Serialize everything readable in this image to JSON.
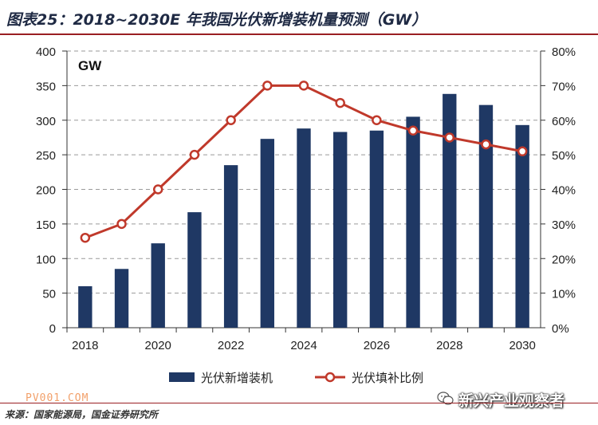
{
  "header": {
    "title": "图表25：2018~2030E 年我国光伏新增装机量预测（GW）"
  },
  "footer": {
    "source": "来源：国家能源局，国金证券研究所",
    "watermark_left": "PV001.COM",
    "watermark_right": "新兴产业观察者",
    "watermark_icon": "wechat-icon"
  },
  "chart_data": {
    "type": "bar",
    "unit_label": "GW",
    "categories": [
      "2018",
      "2019",
      "2020",
      "2021",
      "2022",
      "2023",
      "2024",
      "2025",
      "2026",
      "2027",
      "2028",
      "2029",
      "2030"
    ],
    "x_tick_labels": [
      "2018",
      "2020",
      "2022",
      "2024",
      "2026",
      "2028",
      "2030"
    ],
    "y_left": {
      "ticks": [
        "0",
        "50",
        "100",
        "150",
        "200",
        "250",
        "300",
        "350",
        "400"
      ],
      "lim": [
        0,
        400
      ]
    },
    "y_right": {
      "ticks": [
        "0%",
        "10%",
        "20%",
        "30%",
        "40%",
        "50%",
        "60%",
        "70%",
        "80%"
      ],
      "lim": [
        0,
        80
      ]
    },
    "series": [
      {
        "name": "光伏新增装机",
        "type": "bar",
        "axis": "left",
        "color": "#1f3864",
        "values": [
          60,
          85,
          122,
          167,
          235,
          273,
          288,
          283,
          285,
          305,
          338,
          322,
          293
        ]
      },
      {
        "name": "光伏填补比例",
        "type": "line",
        "axis": "right",
        "color": "#c0392b",
        "values": [
          26,
          30,
          40,
          50,
          60,
          70,
          70,
          65,
          60,
          57,
          55,
          53,
          51
        ]
      }
    ],
    "grid": "dashed-horizontal",
    "legend_position": "bottom"
  }
}
